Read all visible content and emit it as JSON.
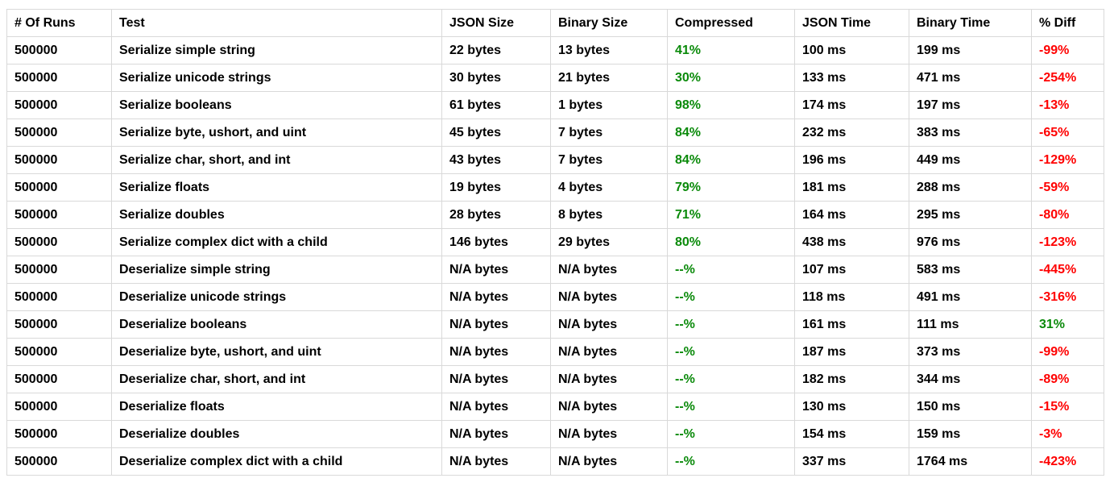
{
  "colors": {
    "positive": "#0a8a0a",
    "negative": "#ff0000",
    "grid": "#d9d9d9"
  },
  "table": {
    "headers": [
      "# Of Runs",
      "Test",
      "JSON Size",
      "Binary Size",
      "Compressed",
      "JSON Time",
      "Binary Time",
      "% Diff"
    ],
    "rows": [
      {
        "runs": "500000",
        "test": "Serialize simple string",
        "json_size": "22 bytes",
        "binary_size": "13 bytes",
        "compressed": "41%",
        "json_time": "100 ms",
        "binary_time": "199 ms",
        "diff": "-99%",
        "diff_sign": "negative"
      },
      {
        "runs": "500000",
        "test": "Serialize unicode strings",
        "json_size": "30 bytes",
        "binary_size": "21 bytes",
        "compressed": "30%",
        "json_time": "133 ms",
        "binary_time": "471 ms",
        "diff": "-254%",
        "diff_sign": "negative"
      },
      {
        "runs": "500000",
        "test": "Serialize booleans",
        "json_size": "61 bytes",
        "binary_size": "1 bytes",
        "compressed": "98%",
        "json_time": "174 ms",
        "binary_time": "197 ms",
        "diff": "-13%",
        "diff_sign": "negative"
      },
      {
        "runs": "500000",
        "test": "Serialize byte, ushort, and uint",
        "json_size": "45 bytes",
        "binary_size": "7 bytes",
        "compressed": "84%",
        "json_time": "232 ms",
        "binary_time": "383 ms",
        "diff": "-65%",
        "diff_sign": "negative"
      },
      {
        "runs": "500000",
        "test": "Serialize char, short, and int",
        "json_size": "43 bytes",
        "binary_size": "7 bytes",
        "compressed": "84%",
        "json_time": "196 ms",
        "binary_time": "449 ms",
        "diff": "-129%",
        "diff_sign": "negative"
      },
      {
        "runs": "500000",
        "test": "Serialize floats",
        "json_size": "19 bytes",
        "binary_size": "4 bytes",
        "compressed": "79%",
        "json_time": "181 ms",
        "binary_time": "288 ms",
        "diff": "-59%",
        "diff_sign": "negative"
      },
      {
        "runs": "500000",
        "test": "Serialize doubles",
        "json_size": "28 bytes",
        "binary_size": "8 bytes",
        "compressed": "71%",
        "json_time": "164 ms",
        "binary_time": "295 ms",
        "diff": "-80%",
        "diff_sign": "negative"
      },
      {
        "runs": "500000",
        "test": "Serialize complex dict with a child",
        "json_size": "146 bytes",
        "binary_size": "29 bytes",
        "compressed": "80%",
        "json_time": "438 ms",
        "binary_time": "976 ms",
        "diff": "-123%",
        "diff_sign": "negative"
      },
      {
        "runs": "500000",
        "test": "Deserialize simple string",
        "json_size": "N/A bytes",
        "binary_size": "N/A bytes",
        "compressed": "--%",
        "json_time": "107 ms",
        "binary_time": "583 ms",
        "diff": "-445%",
        "diff_sign": "negative"
      },
      {
        "runs": "500000",
        "test": "Deserialize unicode strings",
        "json_size": "N/A bytes",
        "binary_size": "N/A bytes",
        "compressed": "--%",
        "json_time": "118 ms",
        "binary_time": "491 ms",
        "diff": "-316%",
        "diff_sign": "negative"
      },
      {
        "runs": "500000",
        "test": "Deserialize booleans",
        "json_size": "N/A bytes",
        "binary_size": "N/A bytes",
        "compressed": "--%",
        "json_time": "161 ms",
        "binary_time": "111 ms",
        "diff": "31%",
        "diff_sign": "positive"
      },
      {
        "runs": "500000",
        "test": "Deserialize byte, ushort, and uint",
        "json_size": "N/A bytes",
        "binary_size": "N/A bytes",
        "compressed": "--%",
        "json_time": "187 ms",
        "binary_time": "373 ms",
        "diff": "-99%",
        "diff_sign": "negative"
      },
      {
        "runs": "500000",
        "test": "Deserialize char, short, and int",
        "json_size": "N/A bytes",
        "binary_size": "N/A bytes",
        "compressed": "--%",
        "json_time": "182 ms",
        "binary_time": "344 ms",
        "diff": "-89%",
        "diff_sign": "negative"
      },
      {
        "runs": "500000",
        "test": "Deserialize floats",
        "json_size": "N/A bytes",
        "binary_size": "N/A bytes",
        "compressed": "--%",
        "json_time": "130 ms",
        "binary_time": "150 ms",
        "diff": "-15%",
        "diff_sign": "negative"
      },
      {
        "runs": "500000",
        "test": "Deserialize doubles",
        "json_size": "N/A bytes",
        "binary_size": "N/A bytes",
        "compressed": "--%",
        "json_time": "154 ms",
        "binary_time": "159 ms",
        "diff": "-3%",
        "diff_sign": "negative"
      },
      {
        "runs": "500000",
        "test": "Deserialize complex dict with a child",
        "json_size": "N/A bytes",
        "binary_size": "N/A bytes",
        "compressed": "--%",
        "json_time": "337 ms",
        "binary_time": "1764 ms",
        "diff": "-423%",
        "diff_sign": "negative"
      }
    ]
  }
}
